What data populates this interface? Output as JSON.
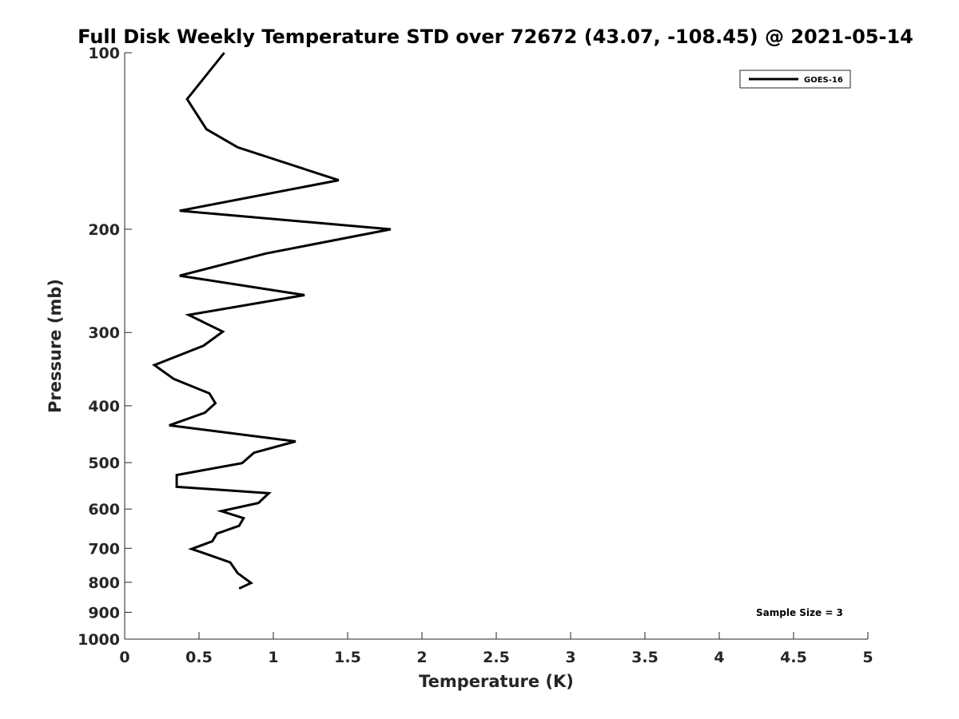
{
  "chart_data": {
    "type": "line",
    "title": "Full Disk Weekly Temperature STD over 72672 (43.07, -108.45) @ 2021-05-14",
    "xlabel": "Temperature (K)",
    "ylabel": "Pressure (mb)",
    "xlim": [
      0,
      5
    ],
    "ylim": [
      100,
      1000
    ],
    "y_scale": "log",
    "y_reversed": true,
    "x_ticks": [
      "0",
      "0.5",
      "1",
      "1.5",
      "2",
      "2.5",
      "3",
      "3.5",
      "4",
      "4.5",
      "5"
    ],
    "y_ticks": [
      "100",
      "200",
      "300",
      "400",
      "500",
      "600",
      "700",
      "800",
      "900",
      "1000"
    ],
    "grid": false,
    "legend_placement": "top-right",
    "annotation": "Sample Size = 3",
    "series": [
      {
        "name": "GOES-16",
        "color": "#000000",
        "x": [
          0.67,
          0.42,
          0.55,
          0.76,
          1.44,
          0.37,
          1.79,
          0.95,
          0.37,
          1.21,
          0.43,
          0.66,
          0.53,
          0.2,
          0.33,
          0.57,
          0.61,
          0.54,
          0.3,
          1.15,
          0.87,
          0.79,
          0.35,
          0.35,
          0.97,
          0.9,
          0.65,
          0.8,
          0.77,
          0.62,
          0.59,
          0.45,
          0.53,
          0.71,
          0.76,
          0.85,
          0.77
        ],
        "y": [
          100,
          120,
          135,
          145,
          165,
          186,
          200,
          220,
          240,
          259,
          280,
          299,
          316,
          341,
          360,
          381,
          396,
          411,
          432,
          460,
          481,
          501,
          525,
          550,
          564,
          586,
          605,
          622,
          641,
          661,
          681,
          702,
          713,
          740,
          772,
          802,
          820
        ]
      }
    ]
  }
}
